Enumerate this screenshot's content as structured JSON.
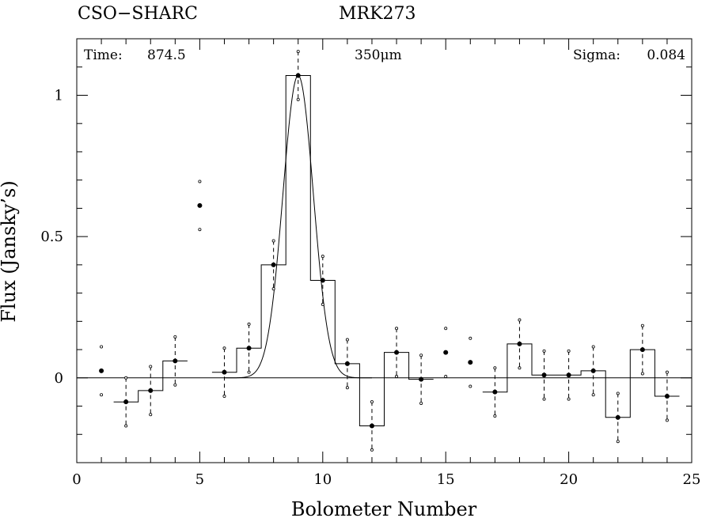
{
  "header": {
    "instrument": "CSO−SHARC",
    "source": "MRK273"
  },
  "panel": {
    "time_label": "Time:",
    "time_value": "874.5",
    "wavelength": "350μm",
    "sigma_label": "Sigma:",
    "sigma_value": "0.084"
  },
  "chart_data": {
    "type": "scatter",
    "xlabel": "Bolometer Number",
    "ylabel": "Flux (Jansky’s)",
    "xlim": [
      0,
      25
    ],
    "ylim": [
      -0.3,
      1.2
    ],
    "x_ticks": [
      0,
      5,
      10,
      15,
      20,
      25
    ],
    "x_tick_labels": [
      "0",
      "5",
      "10",
      "15",
      "20",
      "25"
    ],
    "y_ticks": [
      0,
      0.5,
      1
    ],
    "y_tick_labels": [
      "0",
      "0.5",
      "1"
    ],
    "zero_line": 0,
    "grid": false,
    "points": [
      {
        "x": 1,
        "y": 0.025,
        "err": 0.085,
        "style": "dots"
      },
      {
        "x": 2,
        "y": -0.085,
        "err": 0.085,
        "style": "bar"
      },
      {
        "x": 3,
        "y": -0.045,
        "err": 0.085,
        "style": "bar"
      },
      {
        "x": 4,
        "y": 0.06,
        "err": 0.085,
        "style": "bar"
      },
      {
        "x": 5,
        "y": 0.61,
        "err": 0.085,
        "style": "dots"
      },
      {
        "x": 6,
        "y": 0.02,
        "err": 0.085,
        "style": "bar"
      },
      {
        "x": 7,
        "y": 0.105,
        "err": 0.085,
        "style": "bar"
      },
      {
        "x": 8,
        "y": 0.4,
        "err": 0.085,
        "style": "bar"
      },
      {
        "x": 9,
        "y": 1.07,
        "err": 0.085,
        "style": "bar"
      },
      {
        "x": 10,
        "y": 0.345,
        "err": 0.085,
        "style": "bar"
      },
      {
        "x": 11,
        "y": 0.05,
        "err": 0.085,
        "style": "bar"
      },
      {
        "x": 12,
        "y": -0.17,
        "err": 0.085,
        "style": "bar"
      },
      {
        "x": 13,
        "y": 0.09,
        "err": 0.085,
        "style": "bar"
      },
      {
        "x": 14,
        "y": -0.005,
        "err": 0.085,
        "style": "bar"
      },
      {
        "x": 15,
        "y": 0.09,
        "err": 0.085,
        "style": "dots"
      },
      {
        "x": 16,
        "y": 0.055,
        "err": 0.085,
        "style": "dots"
      },
      {
        "x": 17,
        "y": -0.05,
        "err": 0.085,
        "style": "bar"
      },
      {
        "x": 18,
        "y": 0.12,
        "err": 0.085,
        "style": "bar"
      },
      {
        "x": 19,
        "y": 0.01,
        "err": 0.085,
        "style": "bar"
      },
      {
        "x": 20,
        "y": 0.01,
        "err": 0.085,
        "style": "bar"
      },
      {
        "x": 21,
        "y": 0.025,
        "err": 0.085,
        "style": "bar"
      },
      {
        "x": 22,
        "y": -0.14,
        "err": 0.085,
        "style": "bar"
      },
      {
        "x": 23,
        "y": 0.1,
        "err": 0.085,
        "style": "bar"
      },
      {
        "x": 24,
        "y": -0.065,
        "err": 0.085,
        "style": "bar"
      }
    ],
    "histogram_segments": [
      [
        [
          1.5,
          2.5,
          -0.085
        ],
        [
          2.5,
          3.5,
          -0.045
        ],
        [
          3.5,
          4.5,
          0.06
        ]
      ],
      [
        [
          5.5,
          6.5,
          0.02
        ],
        [
          6.5,
          7.5,
          0.105
        ],
        [
          7.5,
          8.5,
          0.4
        ],
        [
          8.5,
          9.5,
          1.07
        ],
        [
          9.5,
          10.5,
          0.345
        ],
        [
          10.5,
          11.5,
          0.05
        ],
        [
          11.5,
          12.5,
          -0.17
        ],
        [
          12.5,
          13.5,
          0.09
        ],
        [
          13.5,
          14.5,
          -0.005
        ]
      ],
      [
        [
          16.5,
          17.5,
          -0.05
        ],
        [
          17.5,
          18.5,
          0.12
        ],
        [
          18.5,
          19.5,
          0.01
        ],
        [
          19.5,
          20.5,
          0.01
        ],
        [
          20.5,
          21.5,
          0.025
        ],
        [
          21.5,
          22.5,
          -0.14
        ],
        [
          22.5,
          23.5,
          0.1
        ],
        [
          23.5,
          24.5,
          -0.065
        ]
      ]
    ],
    "gaussian_fit": {
      "amplitude": 1.07,
      "center": 9.0,
      "sigma": 0.62,
      "x_range": [
        6,
        12
      ]
    }
  }
}
